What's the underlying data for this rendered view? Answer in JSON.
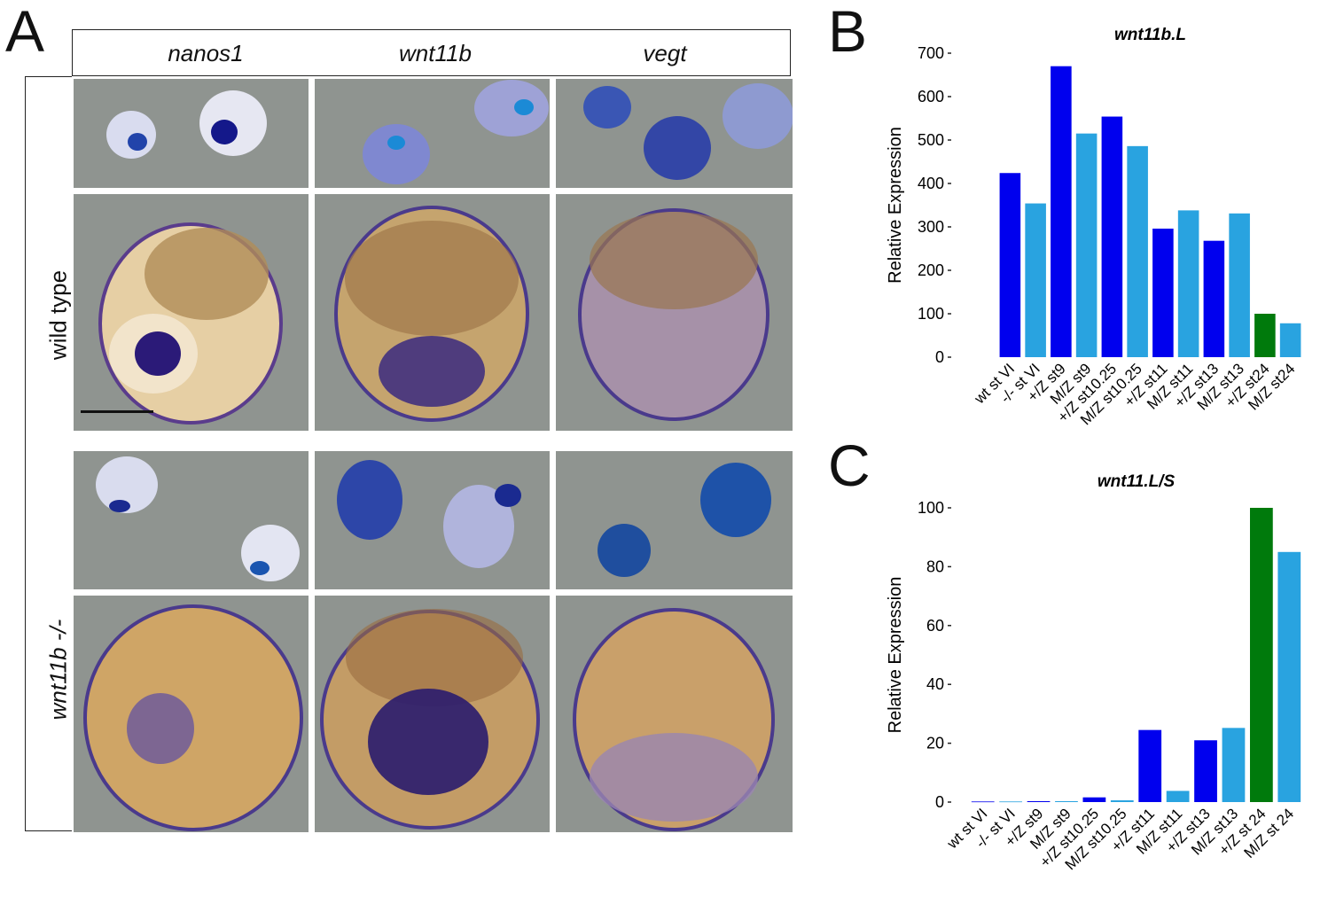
{
  "panel_a": {
    "letter": "A",
    "columns": [
      "nanos1",
      "wnt11b",
      "vegt"
    ],
    "rows": [
      "wild type",
      "wnt11b -/-"
    ]
  },
  "chart_data": [
    {
      "panel": "B",
      "type": "bar",
      "title": "wnt11b.L",
      "ylabel": "Relative Expression",
      "xlabel": "",
      "ylim": [
        0,
        700
      ],
      "yticks": [
        0,
        100,
        200,
        300,
        400,
        500,
        600,
        700
      ],
      "categories": [
        "wt st VI",
        "-/- st VI",
        "+/Z st9",
        "M/Z st9",
        "+/Z st10.25",
        "M/Z st10.25",
        "+/Z st11",
        "M/Z st11",
        "+/Z st13",
        "M/Z st13",
        "+/Z st24",
        "M/Z st24"
      ],
      "values": [
        424,
        354,
        670,
        515,
        554,
        486,
        296,
        338,
        268,
        331,
        100,
        78
      ],
      "colors": [
        "#0000ee",
        "#29a3e0",
        "#0000ee",
        "#29a3e0",
        "#0000ee",
        "#29a3e0",
        "#0000ee",
        "#29a3e0",
        "#0000ee",
        "#29a3e0",
        "#007a0c",
        "#29a3e0"
      ],
      "grid": false
    },
    {
      "panel": "C",
      "type": "bar",
      "title": "wnt11.L/S",
      "ylabel": "Relative Expression",
      "xlabel": "",
      "ylim": [
        0,
        100
      ],
      "yticks": [
        0,
        20,
        40,
        60,
        80,
        100
      ],
      "categories": [
        "wt st VI",
        "-/- st VI",
        "+/Z st9",
        "M/Z st9",
        "+/Z st10.25",
        "M/Z st10.25",
        "+/Z st11",
        "M/Z st11",
        "+/Z st13",
        "M/Z st13",
        "+/Z st 24",
        "M/Z st 24"
      ],
      "values": [
        0.2,
        0.2,
        0.3,
        0.3,
        1.6,
        0.6,
        24.5,
        3.8,
        21,
        25.2,
        100,
        85
      ],
      "colors": [
        "#0000ee",
        "#29a3e0",
        "#0000ee",
        "#29a3e0",
        "#0000ee",
        "#29a3e0",
        "#0000ee",
        "#29a3e0",
        "#0000ee",
        "#29a3e0",
        "#007a0c",
        "#29a3e0"
      ],
      "grid": false
    }
  ]
}
